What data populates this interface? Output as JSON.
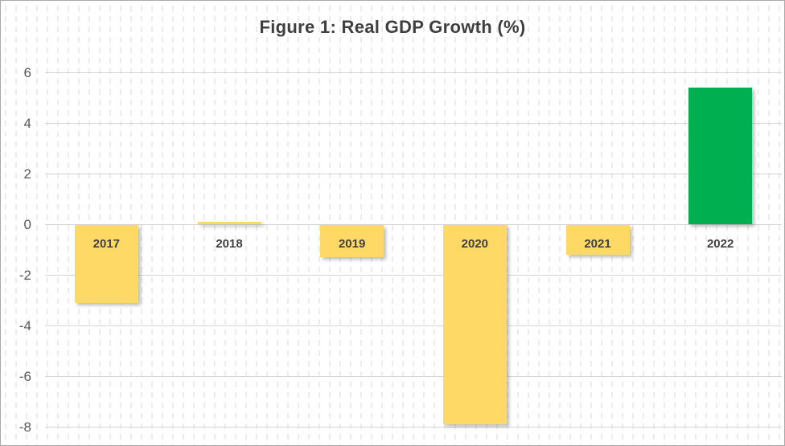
{
  "chart_data": {
    "type": "bar",
    "title": "Figure 1: Real GDP Growth (%)",
    "categories": [
      "2017",
      "2018",
      "2019",
      "2020",
      "2021",
      "2022"
    ],
    "values": [
      -3.1,
      0.1,
      -1.3,
      -7.9,
      -1.2,
      5.4
    ],
    "bar_colors": [
      "#FFD966",
      "#FFD966",
      "#FFD966",
      "#FFD966",
      "#FFD966",
      "#00B050"
    ],
    "xlabel": "",
    "ylabel": "",
    "ylim": [
      -8,
      6
    ],
    "yticks": [
      6,
      4,
      2,
      0,
      -2,
      -4,
      -6,
      -8
    ],
    "grid": true,
    "legend": "none",
    "colors": {
      "bar_default": "#FFD966",
      "bar_highlight": "#00B050",
      "gridline": "#D4D4D4",
      "tick_label": "#595959",
      "title_text": "#3F3F3F",
      "category_label": "#3F3F3F",
      "background": "#FFFFFF",
      "frame_border": "#A9A9A9"
    }
  }
}
